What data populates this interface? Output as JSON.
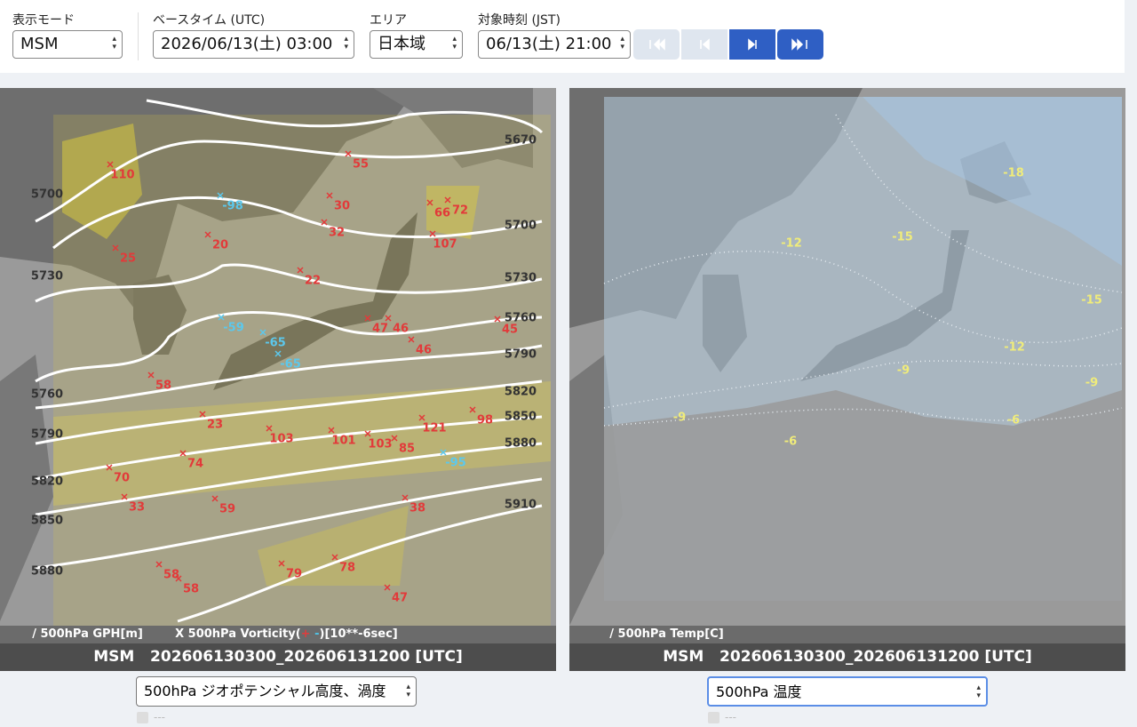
{
  "header": {
    "controls": [
      {
        "label": "表示モード",
        "value": "MSM"
      },
      {
        "label": "ベースタイム (UTC)",
        "value": "2026/06/13(土) 03:00"
      },
      {
        "label": "エリア",
        "value": "日本域"
      },
      {
        "label": "対象時刻 (JST)",
        "value": "06/13(土) 21:00"
      }
    ]
  },
  "panels": [
    {
      "legend": [
        "/ 500hPa GPH[m]",
        "X 500hPa Vorticity(",
        "+",
        "-",
        ")[10**-6sec]"
      ],
      "caption": "MSM   202606130300_202606131200 [UTC]",
      "select": "500hPa ジオポテンシャル高度、渦度",
      "checkbox": "---",
      "map": {
        "positive_vorticity": [
          110,
          55,
          30,
          66,
          72,
          32,
          20,
          107,
          25,
          22,
          47,
          46,
          45,
          46,
          58,
          23,
          103,
          101,
          103,
          85,
          121,
          98,
          74,
          70,
          33,
          59,
          38,
          58,
          58,
          79,
          78,
          47
        ],
        "negative_vorticity": [
          -98,
          -59,
          -65,
          -65,
          -95
        ],
        "contours": [
          5670,
          5700,
          5700,
          5730,
          5730,
          5760,
          5790,
          5820,
          5850,
          5880,
          5910,
          5760,
          5790,
          5820,
          5850,
          5880
        ]
      }
    },
    {
      "legend": [
        "/ 500hPa Temp[C]"
      ],
      "caption": "MSM   202606130300_202606131200 [UTC]",
      "select": "500hPa 温度",
      "checkbox": "---",
      "map": {
        "contours": [
          -18,
          -12,
          -15,
          -15,
          -12,
          -9,
          -9,
          -9,
          -6,
          -6
        ]
      }
    }
  ]
}
